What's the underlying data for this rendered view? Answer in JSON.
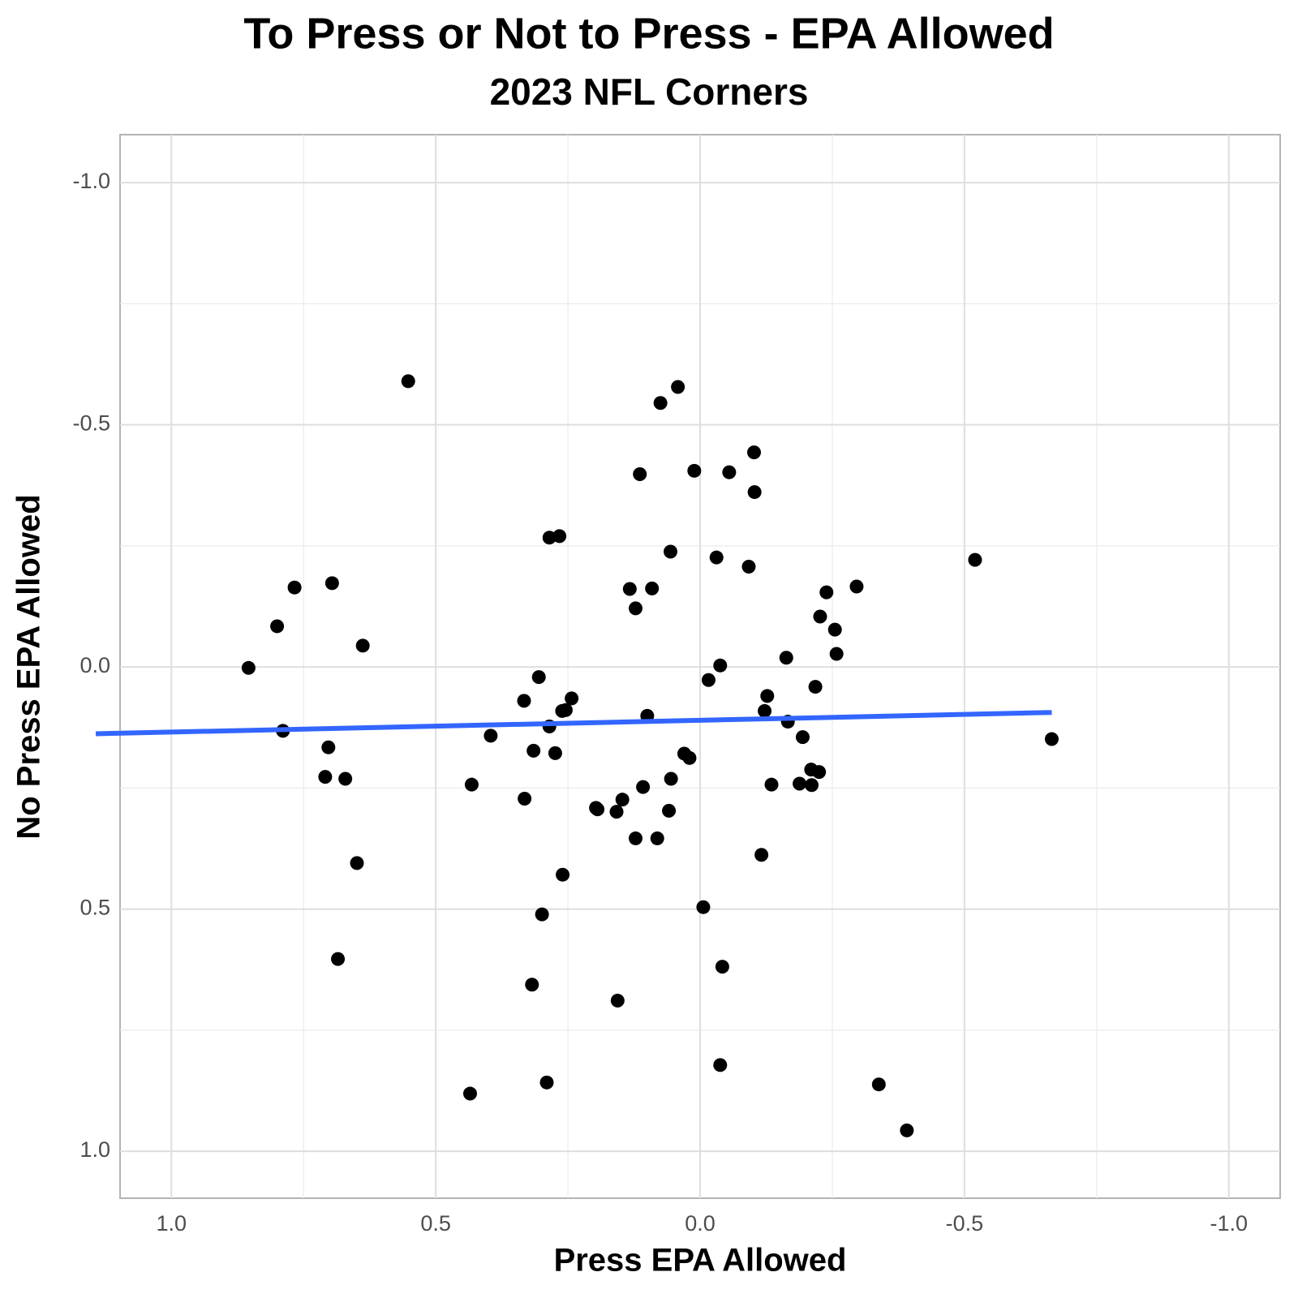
{
  "chart_data": {
    "type": "scatter",
    "title": "To Press or Not to Press - EPA Allowed",
    "subtitle": "2023 NFL Corners",
    "x_label": "Press EPA Allowed",
    "y_label": "No Press EPA Allowed",
    "xlim": [
      1.097,
      -1.097
    ],
    "ylim": [
      1.097,
      -1.099
    ],
    "xticks": [
      {
        "value": 1,
        "label": "1.0"
      },
      0.5,
      {
        "value": 0,
        "label": "0.0"
      },
      -0.5,
      {
        "value": -1,
        "label": "-1.0"
      }
    ],
    "yticks": [
      {
        "value": 1,
        "label": "1.0"
      },
      0.5,
      {
        "value": 0,
        "label": "0.0"
      },
      -0.5,
      {
        "value": -1,
        "label": "-1.0"
      }
    ],
    "xminor": [
      0.75,
      0.25,
      -0.25,
      -0.75
    ],
    "yminor": [
      0.75,
      0.25,
      -0.25,
      -0.75
    ],
    "grid": true,
    "color": "#000000",
    "x": [
      0.552,
      0.042,
      0.075,
      -0.102,
      0.114,
      0.011,
      -0.055,
      -0.103,
      0.285,
      0.266,
      0.056,
      -0.031,
      -0.092,
      -0.52,
      0.767,
      0.696,
      0.133,
      0.091,
      -0.239,
      -0.296,
      0.122,
      -0.227,
      0.8,
      -0.255,
      0.638,
      -0.258,
      -0.163,
      0.854,
      -0.038,
      0.305,
      -0.016,
      -0.218,
      -0.127,
      0.333,
      0.243,
      0.261,
      0.254,
      -0.122,
      0.1,
      -0.166,
      0.285,
      0.789,
      0.396,
      -0.194,
      -0.665,
      0.703,
      0.315,
      0.274,
      0.03,
      0.02,
      -0.21,
      -0.225,
      0.709,
      0.671,
      0.055,
      0.432,
      -0.135,
      -0.188,
      -0.211,
      0.108,
      0.332,
      0.147,
      0.197,
      0.194,
      0.158,
      0.059,
      0.122,
      0.081,
      -0.116,
      0.649,
      0.26,
      -0.006,
      0.299,
      0.685,
      -0.042,
      0.318,
      0.156,
      -0.038,
      0.29,
      -0.338,
      0.435,
      -0.391
    ],
    "y": [
      -0.59,
      -0.578,
      -0.545,
      -0.443,
      -0.398,
      -0.405,
      -0.402,
      -0.361,
      -0.267,
      -0.27,
      -0.238,
      -0.226,
      -0.207,
      -0.221,
      -0.164,
      -0.173,
      -0.161,
      -0.162,
      -0.154,
      -0.166,
      -0.121,
      -0.104,
      -0.084,
      -0.077,
      -0.044,
      -0.027,
      -0.019,
      0.002,
      -0.003,
      0.021,
      0.027,
      0.041,
      0.06,
      0.07,
      0.065,
      0.091,
      0.089,
      0.091,
      0.101,
      0.113,
      0.123,
      0.132,
      0.142,
      0.145,
      0.149,
      0.166,
      0.173,
      0.178,
      0.179,
      0.188,
      0.212,
      0.217,
      0.227,
      0.231,
      0.231,
      0.243,
      0.243,
      0.241,
      0.244,
      0.248,
      0.272,
      0.274,
      0.291,
      0.294,
      0.299,
      0.297,
      0.354,
      0.354,
      0.388,
      0.405,
      0.429,
      0.496,
      0.511,
      0.603,
      0.619,
      0.656,
      0.689,
      0.822,
      0.858,
      0.862,
      0.881,
      0.957
    ],
    "trend": {
      "color": "#3366ff",
      "x": [
        1.143,
        -0.665
      ],
      "y": [
        0.138,
        0.094
      ]
    }
  }
}
